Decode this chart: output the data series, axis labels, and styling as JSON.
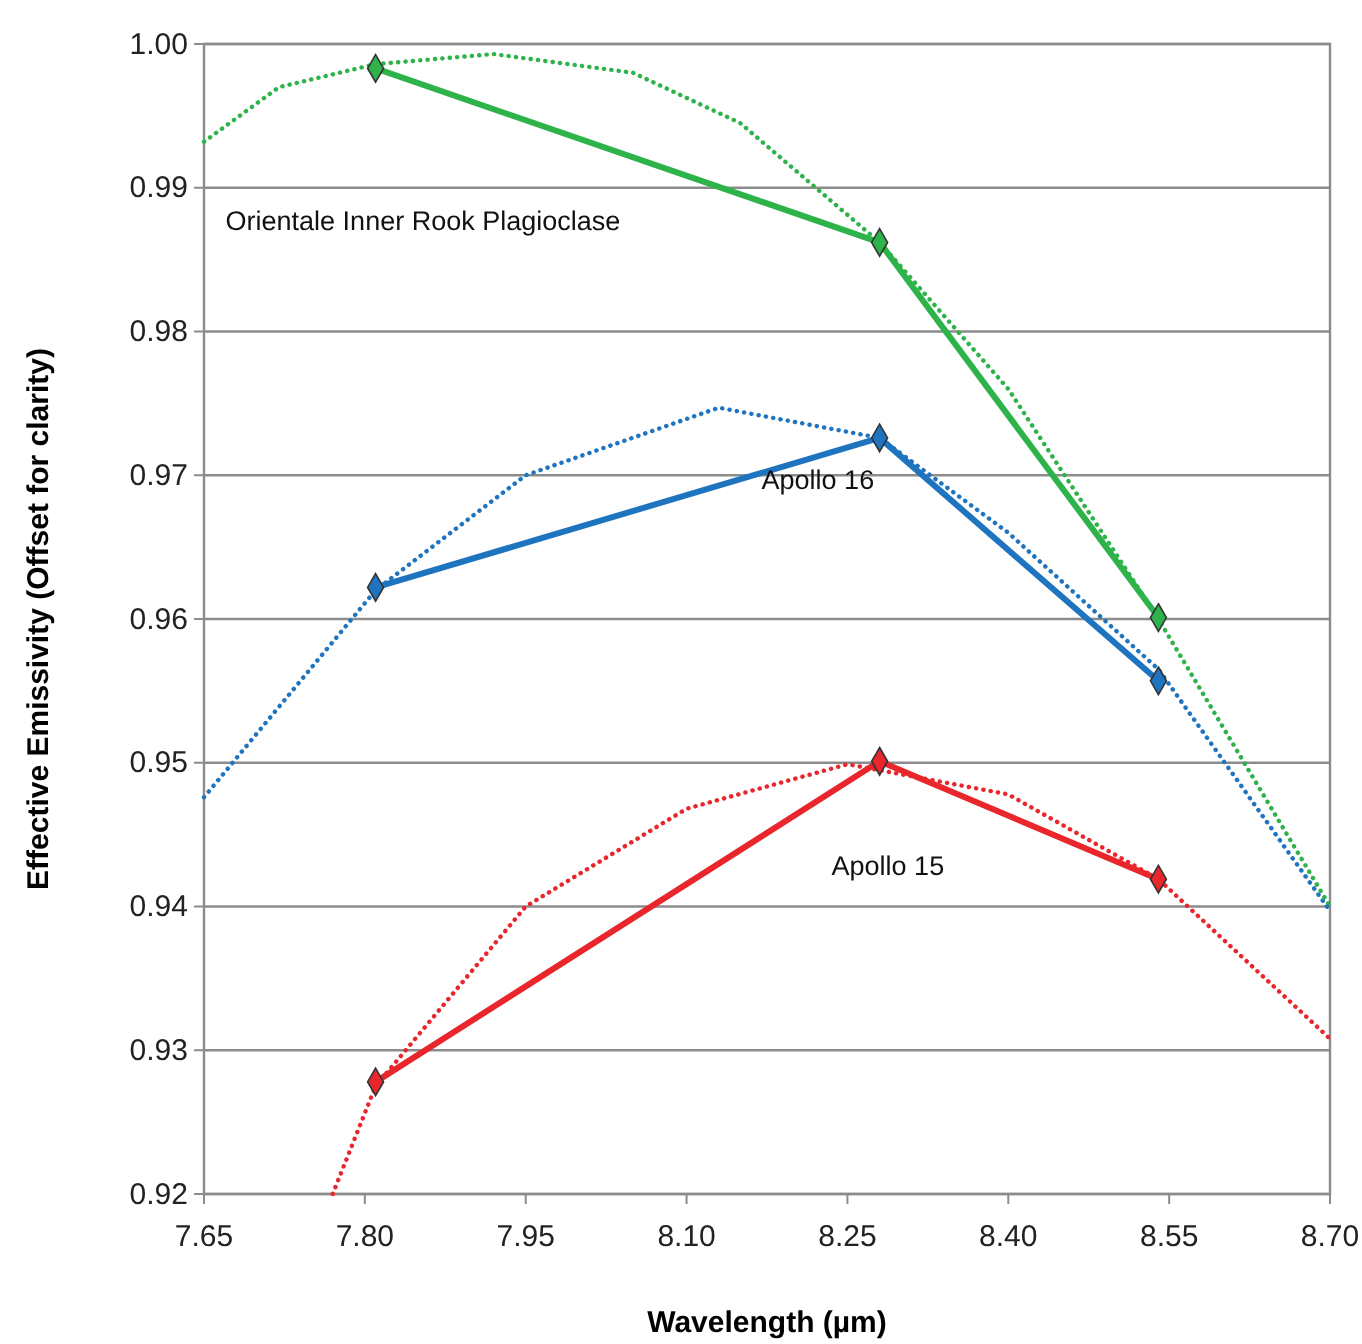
{
  "chart_data": {
    "type": "line",
    "xlabel": "Wavelength (µm)",
    "ylabel": "Effective Emissivity (Offset for clarity)",
    "xlim": [
      7.65,
      8.7
    ],
    "xticks": [
      7.65,
      {
        "value": 7.8,
        "label": "7.80"
      },
      7.95,
      {
        "value": 8.1,
        "label": "8.10"
      },
      8.25,
      {
        "value": 8.4,
        "label": "8.40"
      },
      8.55,
      {
        "value": 8.7,
        "label": "8.70"
      }
    ],
    "ylim": [
      0.92,
      1.0
    ],
    "yticks": [
      0.92,
      0.93,
      0.94,
      0.95,
      0.96,
      0.97,
      0.98,
      0.99,
      {
        "value": 1.0,
        "label": "1.00"
      }
    ],
    "grid": "y",
    "series": [
      {
        "color": "#2db34a",
        "marker": "none",
        "line_style": "dotted",
        "x": [
          7.65,
          7.72,
          7.81,
          7.92,
          8.05,
          8.15,
          8.28,
          8.4,
          8.54,
          8.7
        ],
        "values": [
          0.9932,
          0.997,
          0.9986,
          0.9993,
          0.998,
          0.9945,
          0.9862,
          0.976,
          0.96,
          0.94
        ]
      },
      {
        "color": "#1f74c0",
        "marker": "none",
        "line_style": "dotted",
        "x": [
          7.65,
          7.81,
          7.95,
          8.13,
          8.28,
          8.4,
          8.54,
          8.7
        ],
        "values": [
          0.9476,
          0.962,
          0.97,
          0.9747,
          0.9726,
          0.966,
          0.9565,
          0.9397
        ]
      },
      {
        "color": "#e8262b",
        "marker": "none",
        "line_style": "dotted",
        "x": [
          7.77,
          7.81,
          7.95,
          8.1,
          8.25,
          8.4,
          8.54,
          8.7
        ],
        "values": [
          0.92,
          0.9275,
          0.94,
          0.9468,
          0.9499,
          0.9478,
          0.9419,
          0.9308
        ]
      },
      {
        "name": "Orientale Inner Rook Plagioclase",
        "color": "#2db34a",
        "marker": "diamond",
        "line_style": "solid",
        "x": [
          7.81,
          8.28,
          8.54
        ],
        "values": [
          0.9983,
          0.9862,
          0.9601
        ]
      },
      {
        "name": "Apollo 16",
        "color": "#1f74c0",
        "marker": "diamond",
        "line_style": "solid",
        "x": [
          7.81,
          8.28,
          8.54
        ],
        "values": [
          0.9622,
          0.9726,
          0.9557
        ]
      },
      {
        "name": "Apollo 15",
        "color": "#e8262b",
        "marker": "diamond",
        "line_style": "solid",
        "x": [
          7.81,
          8.28,
          8.54
        ],
        "values": [
          0.9278,
          0.9501,
          0.9419
        ]
      }
    ]
  }
}
